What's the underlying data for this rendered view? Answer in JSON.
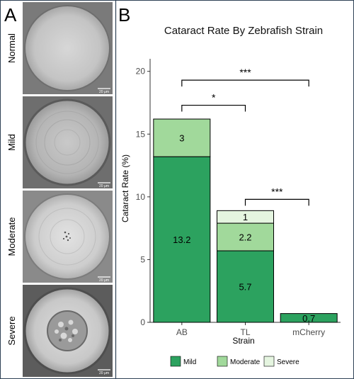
{
  "panel_a": {
    "letter": "A",
    "images": [
      {
        "label": "Normal",
        "scale": "20 μm"
      },
      {
        "label": "Mild",
        "scale": "20 μm"
      },
      {
        "label": "Moderate",
        "scale": "20 μm"
      },
      {
        "label": "Severe",
        "scale": "20 μm"
      }
    ]
  },
  "panel_b": {
    "letter": "B"
  },
  "chart_data": {
    "type": "bar",
    "stacked": true,
    "title": "Cataract Rate By Zebrafish Strain",
    "xlabel": "Strain",
    "ylabel": "Cataract Rate (%)",
    "ylim": [
      0,
      21
    ],
    "yticks": [
      0,
      5,
      10,
      15,
      20
    ],
    "categories": [
      "AB",
      "TL",
      "mCherry"
    ],
    "series": [
      {
        "name": "Mild",
        "color": "#2ca25f",
        "values": [
          13.2,
          5.7,
          0.7
        ]
      },
      {
        "name": "Moderate",
        "color": "#a1d99b",
        "values": [
          3,
          2.2,
          0
        ]
      },
      {
        "name": "Severe",
        "color": "#e5f5e0",
        "values": [
          0,
          1,
          0
        ]
      }
    ],
    "data_labels": [
      {
        "category": "AB",
        "series": "Mild",
        "text": "13.2"
      },
      {
        "category": "AB",
        "series": "Moderate",
        "text": "3"
      },
      {
        "category": "TL",
        "series": "Mild",
        "text": "5.7"
      },
      {
        "category": "TL",
        "series": "Moderate",
        "text": "2.2"
      },
      {
        "category": "TL",
        "series": "Severe",
        "text": "1"
      },
      {
        "category": "mCherry",
        "series": "Mild",
        "text": "0.7"
      }
    ],
    "significance": [
      {
        "from": "AB",
        "to": "TL",
        "height": 17.3,
        "label": "*"
      },
      {
        "from": "AB",
        "to": "mCherry",
        "height": 19.3,
        "label": "***"
      },
      {
        "from": "TL",
        "to": "mCherry",
        "height": 9.8,
        "label": "***"
      }
    ],
    "legend_position": "bottom",
    "grid": false
  }
}
